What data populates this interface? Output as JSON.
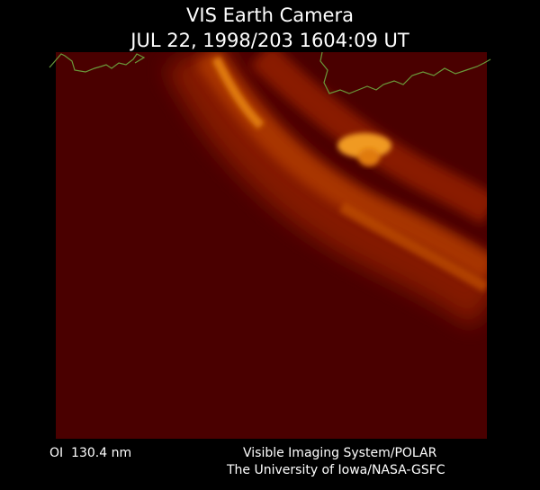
{
  "header": {
    "title": "VIS Earth Camera",
    "subtitle": "JUL 22, 1998/203 1604:09 UT"
  },
  "footer": {
    "filter": "OI  130.4 nm",
    "instrument": "Visible Imaging System/POLAR",
    "credit": "The University of Iowa/NASA-GSFC"
  }
}
